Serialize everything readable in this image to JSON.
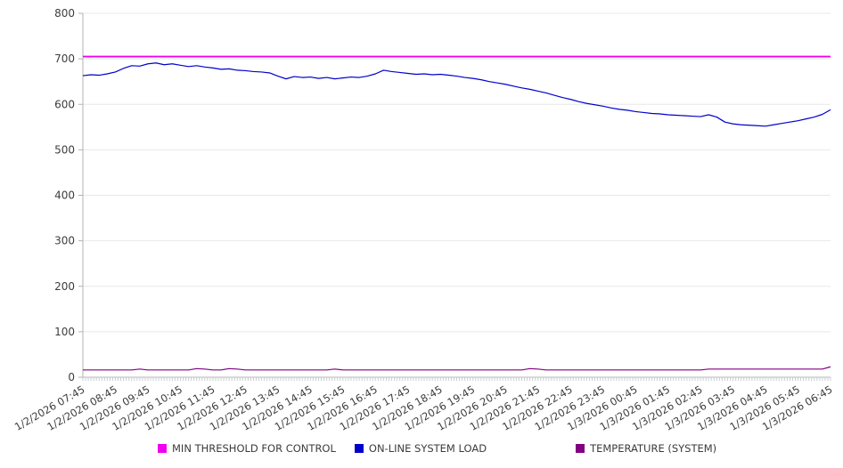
{
  "chart_data": {
    "type": "line",
    "title": "",
    "xlabel": "",
    "ylabel": "",
    "ylim": [
      0,
      800
    ],
    "yticks": [
      0,
      100,
      200,
      300,
      400,
      500,
      600,
      700,
      800
    ],
    "grid": "horizontal",
    "legend_position": "bottom",
    "x_labels": [
      "1/2/2026 07:45",
      "1/2/2026 08:45",
      "1/2/2026 09:45",
      "1/2/2026 10:45",
      "1/2/2026 11:45",
      "1/2/2026 12:45",
      "1/2/2026 13:45",
      "1/2/2026 14:45",
      "1/2/2026 15:45",
      "1/2/2026 16:45",
      "1/2/2026 17:45",
      "1/2/2026 18:45",
      "1/2/2026 19:45",
      "1/2/2026 20:45",
      "1/2/2026 21:45",
      "1/2/2026 22:45",
      "1/2/2026 23:45",
      "1/3/2026 00:45",
      "1/3/2026 01:45",
      "1/3/2026 02:45",
      "1/3/2026 03:45",
      "1/3/2026 04:45",
      "1/3/2026 05:45",
      "1/3/2026 06:45"
    ],
    "points_per_label_interval": 4,
    "sample_interval_minutes": 15,
    "series": [
      {
        "name": "MIN THRESHOLD FOR CONTROL",
        "color": "#f000f0",
        "constant": 705
      },
      {
        "name": "ON-LINE SYSTEM LOAD",
        "color": "#0000cc",
        "values": [
          663,
          665,
          664,
          667,
          671,
          679,
          685,
          684,
          689,
          691,
          687,
          689,
          686,
          683,
          685,
          682,
          680,
          677,
          678,
          675,
          674,
          672,
          671,
          669,
          662,
          656,
          661,
          659,
          660,
          657,
          659,
          656,
          658,
          660,
          659,
          662,
          667,
          675,
          672,
          670,
          668,
          666,
          667,
          665,
          666,
          664,
          662,
          659,
          657,
          654,
          650,
          647,
          644,
          640,
          636,
          633,
          629,
          625,
          620,
          615,
          611,
          606,
          602,
          599,
          596,
          592,
          589,
          587,
          584,
          582,
          580,
          579,
          577,
          576,
          575,
          574,
          573,
          577,
          572,
          561,
          557,
          555,
          554,
          553,
          552,
          555,
          558,
          561,
          564,
          568,
          572,
          578,
          588
        ]
      },
      {
        "name": "TEMPERATURE (SYSTEM)",
        "color": "#800080",
        "values": [
          16,
          16,
          16,
          16,
          16,
          16,
          16,
          18,
          16,
          16,
          16,
          16,
          16,
          16,
          19,
          18,
          16,
          16,
          19,
          18,
          16,
          16,
          16,
          16,
          16,
          16,
          16,
          16,
          16,
          16,
          16,
          18,
          16,
          16,
          16,
          16,
          16,
          16,
          16,
          16,
          16,
          16,
          16,
          16,
          16,
          16,
          16,
          16,
          16,
          16,
          16,
          16,
          16,
          16,
          16,
          19,
          18,
          16,
          16,
          16,
          16,
          16,
          16,
          16,
          16,
          16,
          16,
          16,
          16,
          16,
          16,
          16,
          16,
          16,
          16,
          16,
          16,
          18,
          18,
          18,
          18,
          18,
          18,
          18,
          18,
          18,
          18,
          18,
          18,
          18,
          18,
          18,
          23
        ]
      }
    ],
    "colors": {
      "grid": "#e8e8e8",
      "axis": "#b3b3b3",
      "minor_tick": "#c9d0d6",
      "tick_text": "#3c3c3c"
    }
  }
}
